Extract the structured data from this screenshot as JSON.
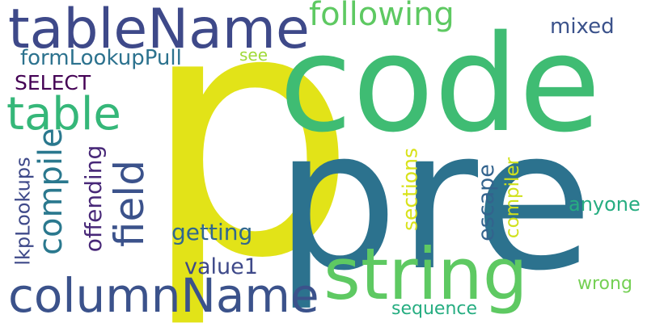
{
  "cloud": {
    "words": [
      {
        "text": "p",
        "color": "#e2e318"
      },
      {
        "text": "code",
        "color": "#3fbc73"
      },
      {
        "text": "pre",
        "color": "#2c728e"
      },
      {
        "text": "string",
        "color": "#5ec962"
      },
      {
        "text": "tableName",
        "color": "#3e4989"
      },
      {
        "text": "columnName",
        "color": "#3b528b"
      },
      {
        "text": "field",
        "color": "#3b528b"
      },
      {
        "text": "table",
        "color": "#35b779"
      },
      {
        "text": "following",
        "color": "#5ec962"
      },
      {
        "text": "compile",
        "color": "#2a788e"
      },
      {
        "text": "formLookupPull",
        "color": "#2c728e"
      },
      {
        "text": "SELECT",
        "color": "#440154"
      },
      {
        "text": "offending",
        "color": "#482878"
      },
      {
        "text": "lkpLookups",
        "color": "#3e4989"
      },
      {
        "text": "getting",
        "color": "#31688e"
      },
      {
        "text": "value1",
        "color": "#3e4989"
      },
      {
        "text": "sections",
        "color": "#d8e219"
      },
      {
        "text": "escape",
        "color": "#33638d"
      },
      {
        "text": "compiler",
        "color": "#d0e11c"
      },
      {
        "text": "mixed",
        "color": "#3b528b"
      },
      {
        "text": "see",
        "color": "#a0da39"
      },
      {
        "text": "anyone",
        "color": "#26ad81"
      },
      {
        "text": "wrong",
        "color": "#75d054"
      },
      {
        "text": "sequence",
        "color": "#26ad81"
      }
    ]
  }
}
